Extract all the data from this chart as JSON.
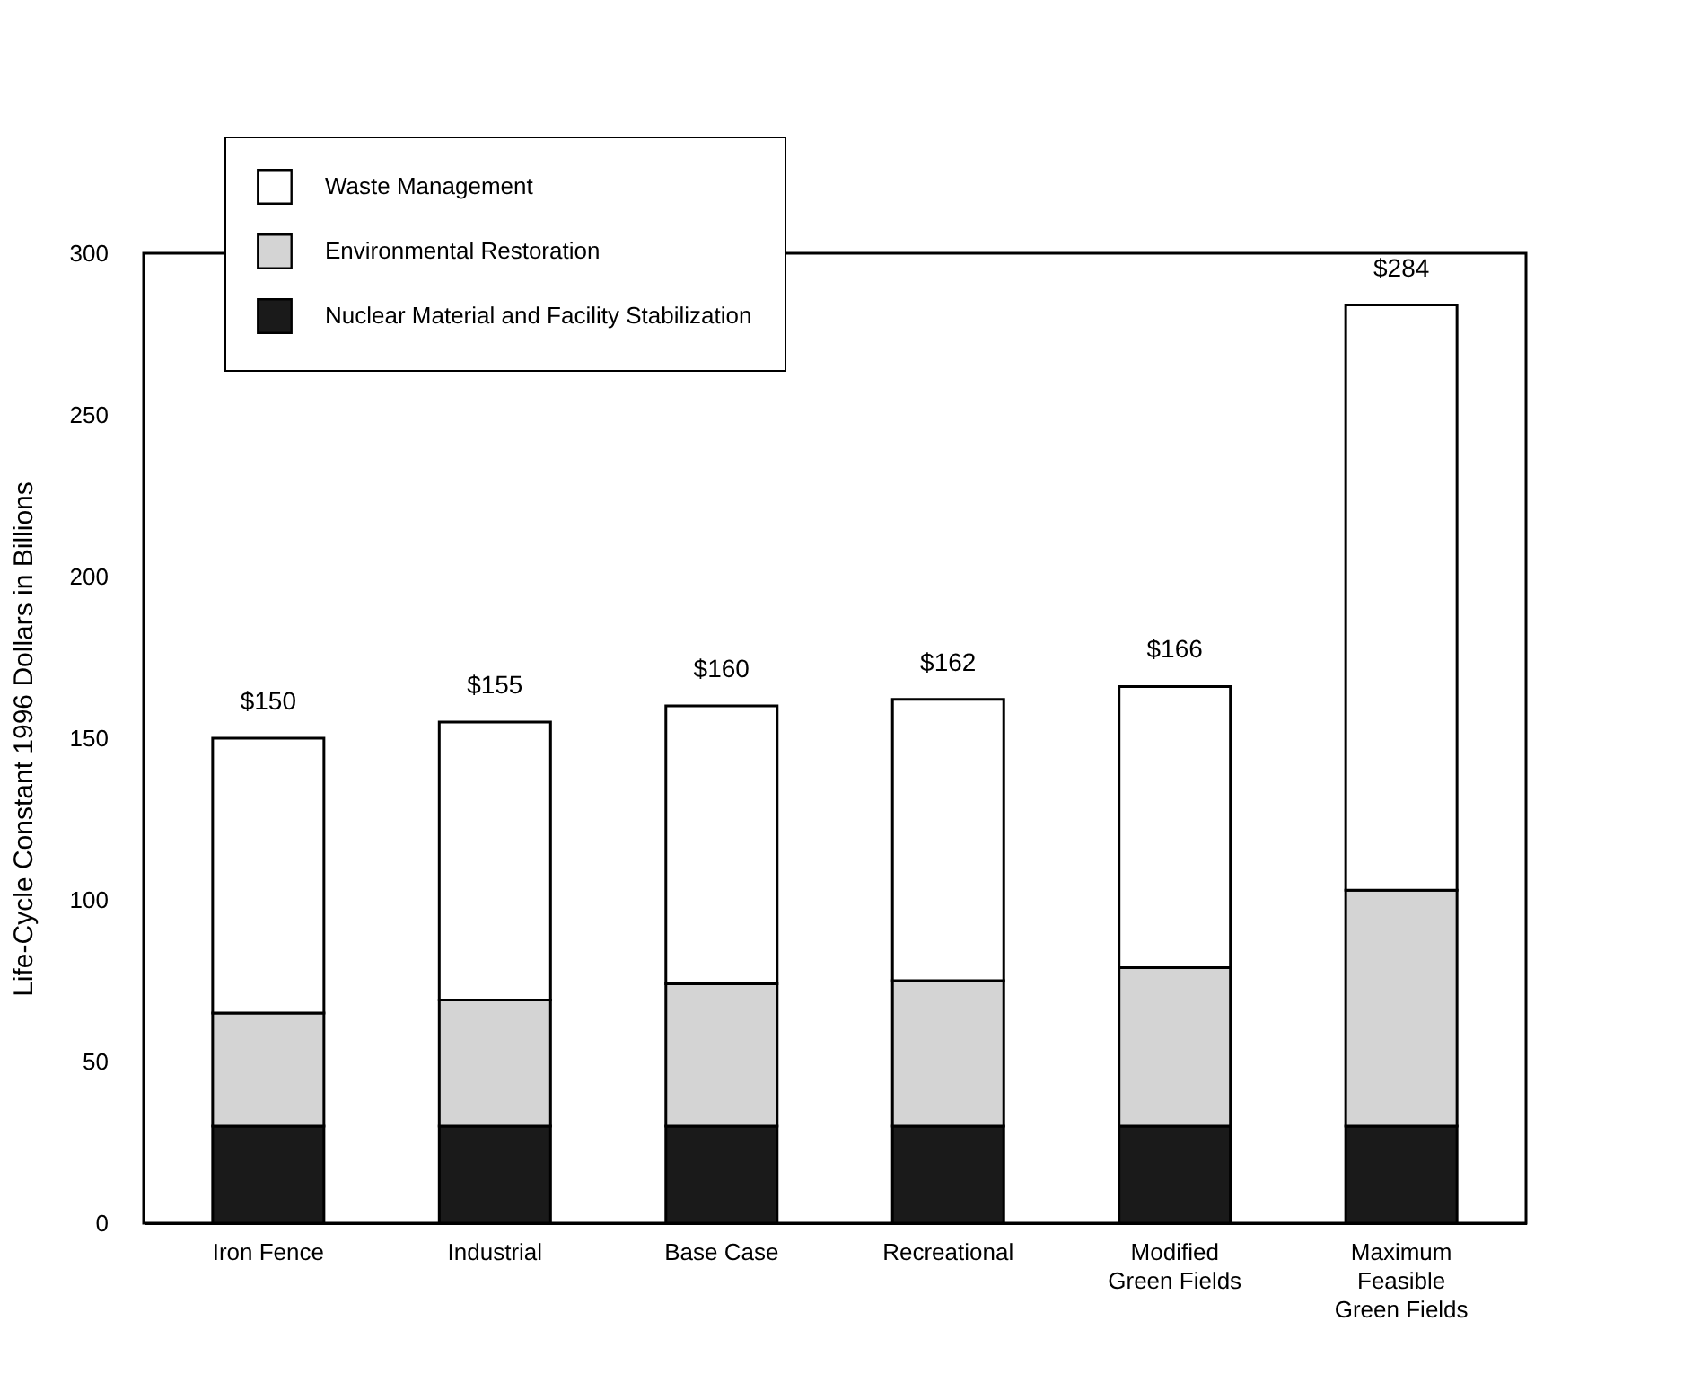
{
  "chart_data": {
    "type": "bar",
    "stacked": true,
    "ylabel": "Life-Cycle Constant 1996 Dollars in Billions",
    "categories": [
      "Iron Fence",
      "Industrial",
      "Base Case",
      "Recreational",
      "Modified Green Fields",
      "Maximum Feasible Green Fields"
    ],
    "series": [
      {
        "name": "Nuclear Material and Facility Stabilization",
        "color": "#1a1a1a",
        "values": [
          30,
          30,
          30,
          30,
          30,
          30
        ]
      },
      {
        "name": "Environmental Restoration",
        "color": "#d4d4d4",
        "values": [
          35,
          39,
          44,
          45,
          49,
          73
        ]
      },
      {
        "name": "Waste Management",
        "color": "#ffffff",
        "values": [
          85,
          86,
          86,
          87,
          87,
          181
        ]
      }
    ],
    "totals": [
      "$150",
      "$155",
      "$160",
      "$162",
      "$166",
      "$284"
    ],
    "ylim": [
      0,
      300
    ],
    "yticks": [
      0,
      50,
      100,
      150,
      200,
      250,
      300
    ],
    "grid": false,
    "legend": "top left"
  }
}
